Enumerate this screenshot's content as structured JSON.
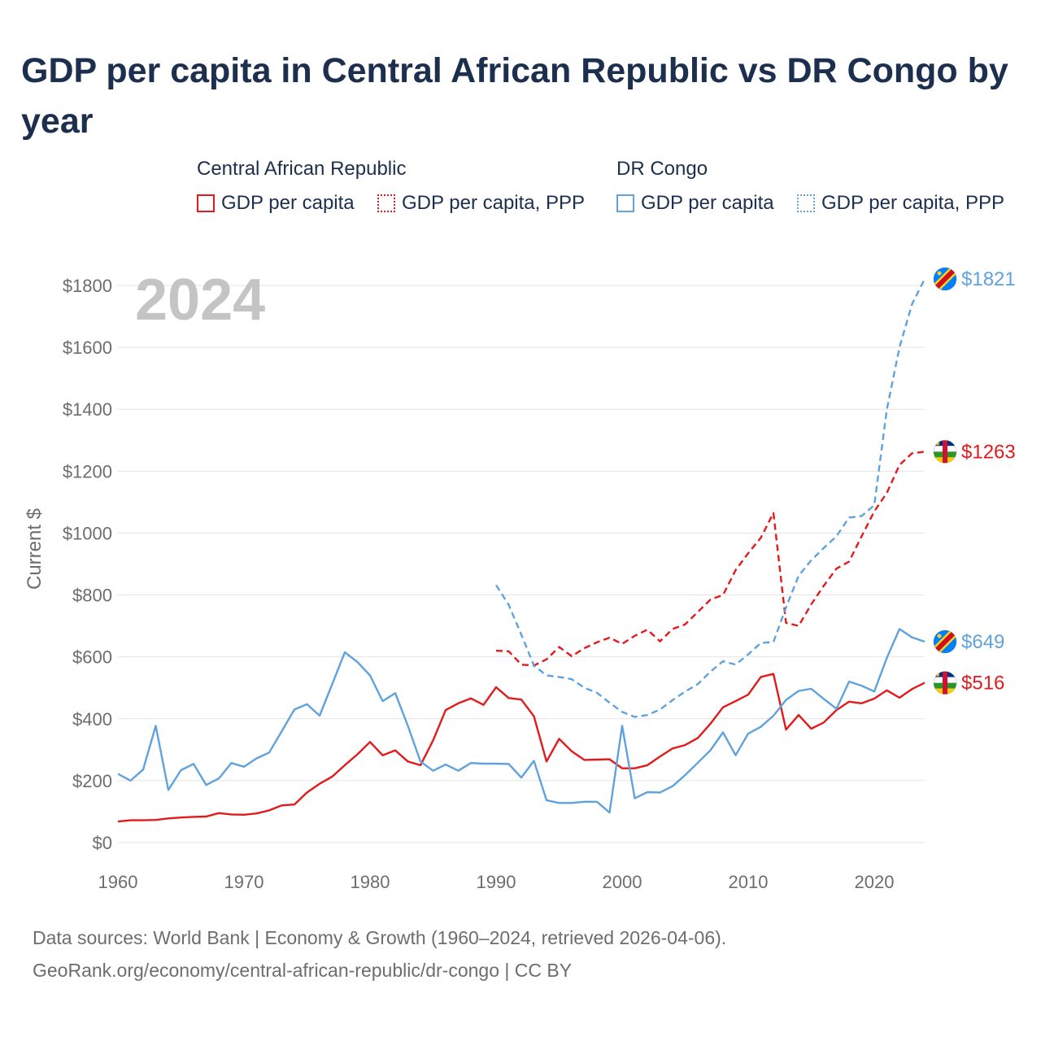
{
  "title": "GDP per capita in Central African Republic vs DR Congo by year",
  "legend": {
    "groups": [
      {
        "name": "Central African Republic",
        "items": [
          {
            "label": "GDP per capita",
            "color": "#e31a1c",
            "style": "solid"
          },
          {
            "label": "GDP per capita, PPP",
            "color": "#e31a1c",
            "style": "dotted"
          }
        ]
      },
      {
        "name": "DR Congo",
        "items": [
          {
            "label": "GDP per capita",
            "color": "#5fa2dd",
            "style": "solid"
          },
          {
            "label": "GDP per capita, PPP",
            "color": "#5fa2dd",
            "style": "dotted"
          }
        ]
      }
    ]
  },
  "year_label": "2024",
  "footer": {
    "line1": "Data sources: World Bank | Economy & Growth (1960–2024, retrieved 2026-04-06).",
    "line2": "GeoRank.org/economy/central-african-republic/dr-congo | CC BY"
  },
  "chart_data": {
    "type": "line",
    "ylabel": "Current $",
    "xlabel": "",
    "xlim": [
      1960,
      2024
    ],
    "ylim": [
      0,
      1900
    ],
    "yticks": [
      0,
      200,
      400,
      600,
      800,
      1000,
      1200,
      1400,
      1600,
      1800
    ],
    "ytick_labels": [
      "$0",
      "$200",
      "$400",
      "$600",
      "$800",
      "$1000",
      "$1200",
      "$1400",
      "$1600",
      "$1800"
    ],
    "xticks": [
      1960,
      1970,
      1980,
      1990,
      2000,
      2010,
      2020
    ],
    "xtick_labels": [
      "1960",
      "1970",
      "1980",
      "1990",
      "2000",
      "2010",
      "2020"
    ],
    "series": [
      {
        "name": "Central African Republic GDP per capita",
        "color": "#e31a1c",
        "dash": "solid",
        "end_label": "$516",
        "x": [
          1960,
          1961,
          1962,
          1963,
          1964,
          1965,
          1966,
          1967,
          1968,
          1969,
          1970,
          1971,
          1972,
          1973,
          1974,
          1975,
          1976,
          1977,
          1978,
          1979,
          1980,
          1981,
          1982,
          1983,
          1984,
          1985,
          1986,
          1987,
          1988,
          1989,
          1990,
          1991,
          1992,
          1993,
          1994,
          1995,
          1996,
          1997,
          1998,
          1999,
          2000,
          2001,
          2002,
          2003,
          2004,
          2005,
          2006,
          2007,
          2008,
          2009,
          2010,
          2011,
          2012,
          2013,
          2014,
          2015,
          2016,
          2017,
          2018,
          2019,
          2020,
          2021,
          2022,
          2023,
          2024
        ],
        "values": [
          68,
          72,
          72,
          73,
          78,
          81,
          83,
          84,
          95,
          91,
          90,
          94,
          104,
          120,
          123,
          162,
          190,
          213,
          250,
          285,
          325,
          282,
          298,
          262,
          250,
          330,
          428,
          450,
          466,
          445,
          502,
          467,
          462,
          408,
          262,
          335,
          295,
          267,
          268,
          269,
          240,
          240,
          250,
          278,
          304,
          315,
          338,
          384,
          437,
          457,
          478,
          535,
          545,
          365,
          412,
          368,
          388,
          428,
          455,
          450,
          465,
          492,
          468,
          496,
          516
        ]
      },
      {
        "name": "Central African Republic GDP per capita, PPP",
        "color": "#e31a1c",
        "dash": "dashed",
        "end_label": "$1263",
        "x": [
          1990,
          1991,
          1992,
          1993,
          1994,
          1995,
          1996,
          1997,
          1998,
          1999,
          2000,
          2001,
          2002,
          2003,
          2004,
          2005,
          2006,
          2007,
          2008,
          2009,
          2010,
          2011,
          2012,
          2013,
          2014,
          2015,
          2016,
          2017,
          2018,
          2019,
          2020,
          2021,
          2022,
          2023,
          2024
        ],
        "values": [
          620,
          618,
          575,
          572,
          592,
          632,
          602,
          628,
          647,
          662,
          642,
          668,
          688,
          650,
          690,
          705,
          745,
          785,
          800,
          880,
          935,
          985,
          1065,
          710,
          700,
          770,
          830,
          885,
          908,
          990,
          1070,
          1130,
          1220,
          1258,
          1263
        ]
      },
      {
        "name": "DR Congo GDP per capita",
        "color": "#5fa2dd",
        "dash": "solid",
        "end_label": "$649",
        "x": [
          1960,
          1961,
          1962,
          1963,
          1964,
          1965,
          1966,
          1967,
          1968,
          1969,
          1970,
          1971,
          1972,
          1973,
          1974,
          1975,
          1976,
          1977,
          1978,
          1979,
          1980,
          1981,
          1982,
          1983,
          1984,
          1985,
          1986,
          1987,
          1988,
          1989,
          1990,
          1991,
          1992,
          1993,
          1994,
          1995,
          1996,
          1997,
          1998,
          1999,
          2000,
          2001,
          2002,
          2003,
          2004,
          2005,
          2006,
          2007,
          2008,
          2009,
          2010,
          2011,
          2012,
          2013,
          2014,
          2015,
          2016,
          2017,
          2018,
          2019,
          2020,
          2021,
          2022,
          2023,
          2024
        ],
        "values": [
          222,
          200,
          236,
          377,
          170,
          234,
          254,
          186,
          207,
          257,
          245,
          272,
          291,
          360,
          430,
          447,
          410,
          512,
          615,
          583,
          540,
          457,
          483,
          377,
          262,
          232,
          252,
          232,
          257,
          255,
          255,
          254,
          210,
          264,
          137,
          128,
          128,
          132,
          132,
          97,
          377,
          143,
          163,
          162,
          182,
          218,
          258,
          298,
          356,
          282,
          352,
          374,
          410,
          461,
          490,
          497,
          464,
          432,
          520,
          507,
          488,
          597,
          690,
          663,
          649
        ]
      },
      {
        "name": "DR Congo GDP per capita, PPP",
        "color": "#5fa2dd",
        "dash": "dashed",
        "end_label": "$1821",
        "x": [
          1990,
          1991,
          1992,
          1993,
          1994,
          1995,
          1996,
          1997,
          1998,
          1999,
          2000,
          2001,
          2002,
          2003,
          2004,
          2005,
          2006,
          2007,
          2008,
          2009,
          2010,
          2011,
          2012,
          2013,
          2014,
          2015,
          2016,
          2017,
          2018,
          2019,
          2020,
          2021,
          2022,
          2023,
          2024
        ],
        "values": [
          832,
          768,
          672,
          572,
          540,
          535,
          528,
          500,
          484,
          452,
          422,
          406,
          412,
          430,
          460,
          488,
          512,
          552,
          586,
          575,
          608,
          645,
          648,
          760,
          862,
          912,
          952,
          990,
          1050,
          1055,
          1090,
          1400,
          1600,
          1740,
          1821
        ]
      }
    ]
  }
}
